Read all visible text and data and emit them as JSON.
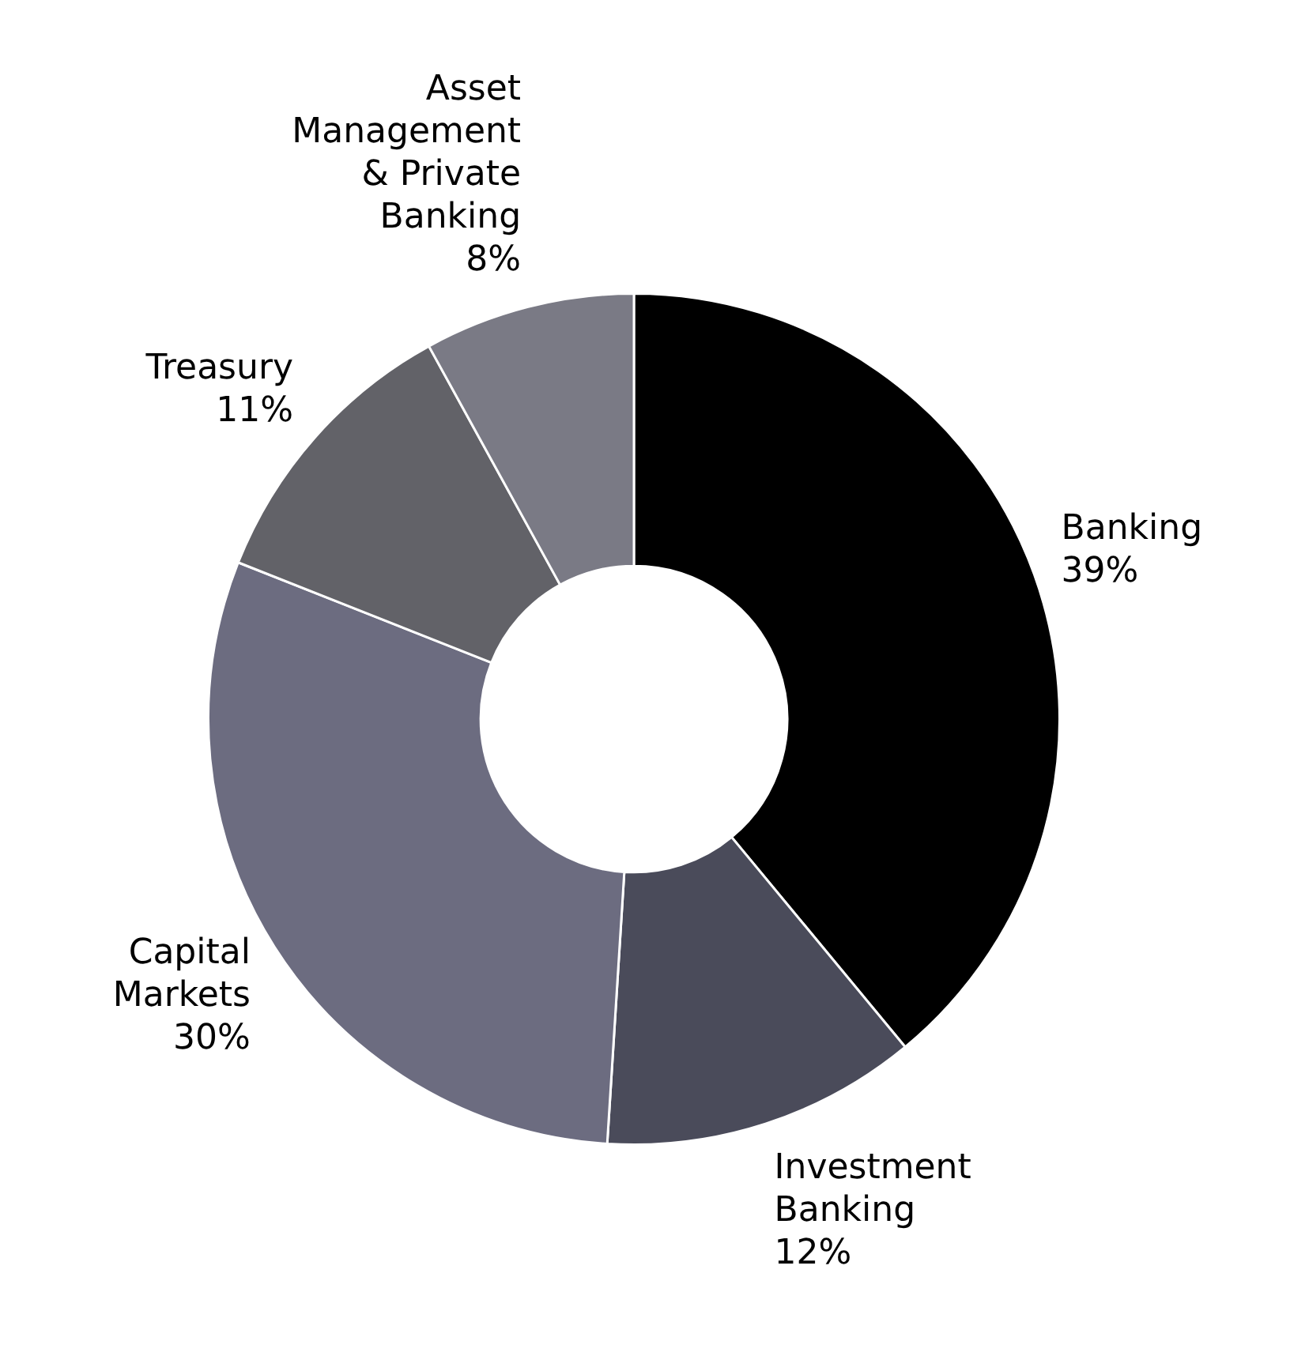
{
  "chart_data": {
    "type": "donut",
    "categories": [
      "Banking",
      "Investment Banking",
      "Capital Markets",
      "Treasury",
      "Asset Management & Private Banking"
    ],
    "values": [
      39,
      12,
      30,
      11,
      8
    ],
    "colors": [
      "#000000",
      "#4a4b5a",
      "#6c6c80",
      "#626268",
      "#7a7a85"
    ],
    "value_labels": [
      "39%",
      "12%",
      "30%",
      "11%",
      "8%"
    ],
    "legend": false
  }
}
